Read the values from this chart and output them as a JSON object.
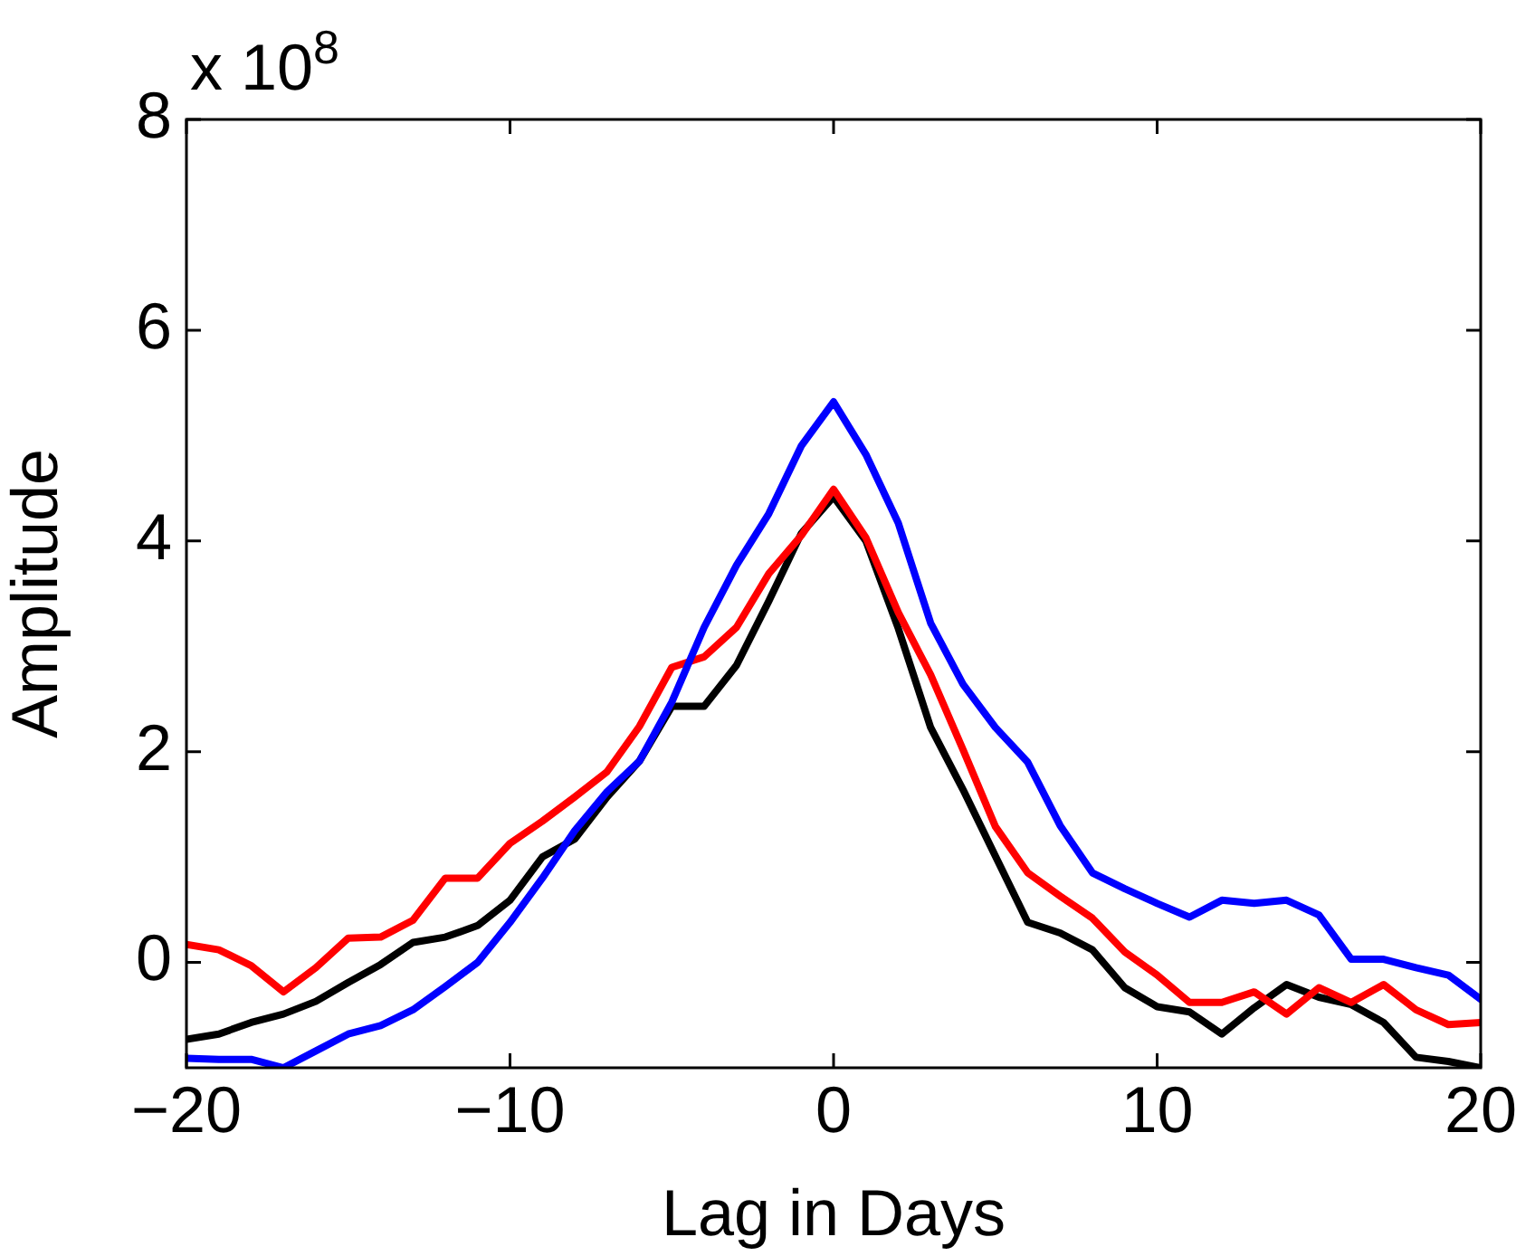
{
  "chart_data": {
    "type": "line",
    "xlabel": "Lag in Days",
    "ylabel": "Amplitude",
    "annotations": [
      "x 10$^{8}$"
    ],
    "x": [
      -20,
      -19,
      -18,
      -17,
      -16,
      -15,
      -14,
      -13,
      -12,
      -11,
      -10,
      -9,
      -8,
      -7,
      -6,
      -5,
      -4,
      -3,
      -2,
      -1,
      0,
      1,
      2,
      3,
      4,
      5,
      6,
      7,
      8,
      9,
      10,
      11,
      12,
      13,
      14,
      15,
      16,
      17,
      18,
      19,
      20
    ],
    "xlim": [
      -20,
      20
    ],
    "xticks": [
      -20,
      -10,
      0,
      10,
      20
    ],
    "ylim": [
      -1,
      8
    ],
    "yticks": [
      0,
      2,
      4,
      6,
      8
    ],
    "grid": false,
    "legend": false,
    "marker": "none",
    "line_style": "solid",
    "series": [
      {
        "color": "#0000ff",
        "values": [
          -0.91,
          -0.92,
          -0.92,
          -1.0,
          -0.84,
          -0.68,
          -0.6,
          -0.45,
          -0.23,
          0.0,
          0.38,
          0.8,
          1.25,
          1.62,
          1.91,
          2.47,
          3.18,
          3.77,
          4.26,
          4.9,
          5.32,
          4.82,
          4.17,
          3.22,
          2.64,
          2.23,
          1.9,
          1.3,
          0.85,
          0.7,
          0.56,
          0.43,
          0.59,
          0.56,
          0.59,
          0.45,
          0.03,
          0.03,
          -0.05,
          -0.12,
          -0.35
        ]
      },
      {
        "color": "#ff0000",
        "values": [
          0.17,
          0.12,
          -0.03,
          -0.28,
          -0.05,
          0.23,
          0.24,
          0.4,
          0.8,
          0.8,
          1.13,
          1.34,
          1.57,
          1.81,
          2.24,
          2.8,
          2.9,
          3.18,
          3.69,
          4.05,
          4.49,
          4.03,
          3.32,
          2.73,
          2.02,
          1.29,
          0.85,
          0.63,
          0.42,
          0.1,
          -0.12,
          -0.38,
          -0.38,
          -0.28,
          -0.49,
          -0.24,
          -0.38,
          -0.21,
          -0.45,
          -0.59,
          -0.57
        ]
      },
      {
        "color": "#000000",
        "values": [
          -0.73,
          -0.68,
          -0.57,
          -0.49,
          -0.37,
          -0.19,
          -0.02,
          0.19,
          0.24,
          0.35,
          0.59,
          1.0,
          1.17,
          1.57,
          1.91,
          2.43,
          2.43,
          2.82,
          3.43,
          4.07,
          4.42,
          4.0,
          3.17,
          2.23,
          1.64,
          1.01,
          0.38,
          0.28,
          0.12,
          -0.24,
          -0.42,
          -0.47,
          -0.68,
          -0.43,
          -0.21,
          -0.33,
          -0.4,
          -0.57,
          -0.9,
          -0.94,
          -1.0
        ]
      }
    ]
  }
}
